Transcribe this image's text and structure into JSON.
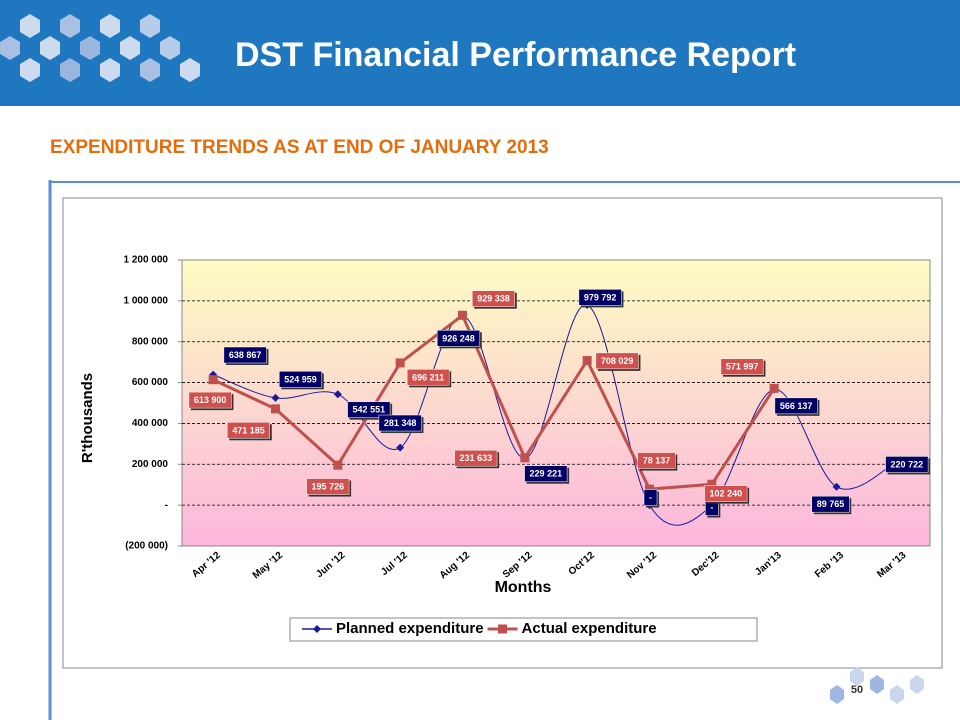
{
  "slide": {
    "title": "DST Financial Performance Report",
    "subtitle": "EXPENDITURE TRENDS AS AT END OF JANUARY 2013",
    "page_number": "50"
  },
  "chart_data": {
    "type": "line",
    "ylabel": "R'thousands",
    "xlabel": "Months",
    "categories": [
      "Apr '12",
      "May '12",
      "Jun '12",
      "Jul '12",
      "Aug '12",
      "Sep '12",
      "Oct'12",
      "Nov '12",
      "Dec'12",
      "Jan'13",
      "Feb '13",
      "Mar '13"
    ],
    "series": [
      {
        "name": "Planned expenditure",
        "color": "#1a1a9c",
        "marker": "diamond",
        "smooth": true,
        "values": [
          638867,
          524959,
          542551,
          281348,
          926248,
          229221,
          979792,
          0,
          0,
          566137,
          89765,
          220722
        ],
        "value_labels": [
          "638 867",
          "524 959",
          "542 551",
          "281 348",
          "926 248",
          "229 221",
          "979 792",
          "-",
          "-",
          "566 137",
          "89 765",
          "220 722"
        ]
      },
      {
        "name": "Actual expenditure",
        "color": "#c0504d",
        "marker": "square",
        "smooth": false,
        "values": [
          613900,
          471185,
          195726,
          696211,
          929338,
          231633,
          708029,
          78137,
          102240,
          571997,
          null,
          null
        ],
        "value_labels": [
          "613 900",
          "471 185",
          "195 726",
          "696 211",
          "929 338",
          "231 633",
          "708 029",
          "78 137",
          "102 240",
          "571 997",
          null,
          null
        ]
      }
    ],
    "ylim": [
      -200000,
      1200000
    ],
    "yticks": [
      {
        "value": -200000,
        "label": "(200 000)"
      },
      {
        "value": 0,
        "label": "-"
      },
      {
        "value": 200000,
        "label": "200 000"
      },
      {
        "value": 400000,
        "label": "400 000"
      },
      {
        "value": 600000,
        "label": "600 000"
      },
      {
        "value": 800000,
        "label": "800 000"
      },
      {
        "value": 1000000,
        "label": "1 000 000"
      },
      {
        "value": 1200000,
        "label": "1 200 000"
      }
    ],
    "grid": true,
    "legend": "bottom"
  }
}
